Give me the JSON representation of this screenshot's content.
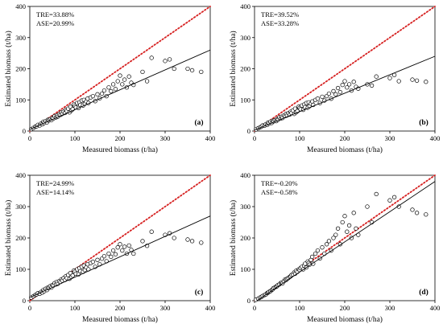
{
  "figure": {
    "xlabel_ab": "Measured biomass  (t/ha)",
    "xlabel_cd": "Measured biomass (t/ha)"
  },
  "colors": {
    "one_to_one_line": "#d62020",
    "fit_line": "#000000",
    "marker_edge": "#000000",
    "marker_fill": "#ffffff"
  },
  "chart_data": [
    {
      "type": "scatter",
      "panel_label": "(a)",
      "stats": [
        "TRE=33.88%",
        "ASE=20.99%"
      ],
      "xlabel": "Measured biomass  (t/ha)",
      "ylabel": "Estimated biomass  (t/ha)",
      "xlim": [
        0,
        400
      ],
      "ylim": [
        0,
        400
      ],
      "xticks": [
        0,
        100,
        200,
        300,
        400
      ],
      "yticks": [
        0,
        100,
        200,
        300,
        400
      ],
      "fit_line": {
        "x": [
          0,
          400
        ],
        "y": [
          5,
          260
        ]
      },
      "reference_line": {
        "x": [
          0,
          400
        ],
        "y": [
          0,
          400
        ],
        "style": "dotted"
      },
      "points": {
        "x": [
          3,
          8,
          12,
          15,
          18,
          22,
          25,
          28,
          30,
          32,
          35,
          38,
          40,
          42,
          45,
          48,
          50,
          52,
          55,
          58,
          60,
          62,
          65,
          68,
          70,
          72,
          75,
          78,
          80,
          82,
          85,
          88,
          90,
          92,
          95,
          98,
          100,
          102,
          105,
          108,
          110,
          112,
          115,
          118,
          120,
          122,
          125,
          128,
          130,
          135,
          140,
          145,
          150,
          155,
          160,
          165,
          170,
          175,
          180,
          185,
          190,
          195,
          200,
          205,
          210,
          215,
          220,
          225,
          230,
          250,
          260,
          270,
          300,
          310,
          320,
          350,
          360,
          380
        ],
        "y": [
          6,
          10,
          14,
          15,
          20,
          18,
          24,
          22,
          30,
          26,
          32,
          28,
          36,
          34,
          38,
          35,
          42,
          40,
          48,
          44,
          50,
          46,
          54,
          52,
          60,
          55,
          62,
          58,
          68,
          64,
          72,
          60,
          78,
          66,
          70,
          85,
          80,
          76,
          90,
          74,
          92,
          84,
          98,
          82,
          100,
          88,
          95,
          104,
          90,
          108,
          112,
          96,
          118,
          105,
          120,
          130,
          112,
          140,
          128,
          150,
          135,
          160,
          178,
          150,
          165,
          140,
          175,
          155,
          148,
          190,
          160,
          235,
          225,
          230,
          200,
          200,
          195,
          190
        ]
      }
    },
    {
      "type": "scatter",
      "panel_label": "(b)",
      "stats": [
        "TRE=39.52%",
        "ASE=33.28%"
      ],
      "xlabel": "Measured biomass  (t/ha)",
      "ylabel": "Estimated biomass  (t/ha)",
      "xlim": [
        0,
        400
      ],
      "ylim": [
        0,
        400
      ],
      "xticks": [
        0,
        100,
        200,
        300,
        400
      ],
      "yticks": [
        0,
        100,
        200,
        300,
        400
      ],
      "fit_line": {
        "x": [
          0,
          400
        ],
        "y": [
          3,
          240
        ]
      },
      "reference_line": {
        "x": [
          0,
          400
        ],
        "y": [
          0,
          400
        ],
        "style": "dotted"
      },
      "points": {
        "x": [
          3,
          8,
          12,
          15,
          18,
          22,
          25,
          28,
          30,
          32,
          35,
          38,
          40,
          42,
          45,
          48,
          50,
          52,
          55,
          58,
          60,
          62,
          65,
          68,
          70,
          72,
          75,
          78,
          80,
          82,
          85,
          88,
          90,
          92,
          95,
          98,
          100,
          102,
          105,
          108,
          110,
          112,
          115,
          118,
          120,
          122,
          125,
          128,
          130,
          135,
          140,
          145,
          150,
          155,
          160,
          165,
          170,
          175,
          180,
          185,
          190,
          195,
          200,
          205,
          210,
          215,
          220,
          225,
          230,
          250,
          260,
          270,
          300,
          310,
          320,
          350,
          360,
          380
        ],
        "y": [
          5,
          9,
          12,
          14,
          18,
          17,
          22,
          20,
          27,
          24,
          30,
          26,
          33,
          31,
          35,
          32,
          38,
          36,
          44,
          40,
          46,
          42,
          50,
          48,
          55,
          50,
          57,
          53,
          62,
          58,
          66,
          55,
          72,
          60,
          64,
          78,
          74,
          70,
          82,
          68,
          85,
          77,
          90,
          75,
          92,
          80,
          88,
          95,
          84,
          100,
          104,
          90,
          110,
          98,
          112,
          120,
          104,
          128,
          118,
          138,
          125,
          148,
          160,
          140,
          150,
          130,
          158,
          142,
          136,
          150,
          146,
          175,
          170,
          180,
          160,
          165,
          162,
          158
        ]
      }
    },
    {
      "type": "scatter",
      "panel_label": "(c)",
      "stats": [
        "TRE=24.99%",
        "ASE=14.14%"
      ],
      "xlabel": "Measured biomass (t/ha)",
      "ylabel": "Estimated biomass  (t/ha)",
      "xlim": [
        0,
        400
      ],
      "ylim": [
        0,
        400
      ],
      "xticks": [
        0,
        100,
        200,
        300,
        400
      ],
      "yticks": [
        0,
        100,
        200,
        300,
        400
      ],
      "fit_line": {
        "x": [
          0,
          400
        ],
        "y": [
          10,
          270
        ]
      },
      "reference_line": {
        "x": [
          0,
          400
        ],
        "y": [
          0,
          400
        ],
        "style": "dotted"
      },
      "points": {
        "x": [
          3,
          8,
          12,
          15,
          18,
          22,
          25,
          28,
          30,
          32,
          35,
          38,
          40,
          42,
          45,
          48,
          50,
          52,
          55,
          58,
          60,
          62,
          65,
          68,
          70,
          72,
          75,
          78,
          80,
          82,
          85,
          88,
          90,
          92,
          95,
          98,
          100,
          102,
          105,
          108,
          110,
          112,
          115,
          118,
          120,
          122,
          125,
          128,
          130,
          135,
          140,
          145,
          150,
          155,
          160,
          165,
          170,
          175,
          180,
          185,
          190,
          195,
          200,
          205,
          210,
          215,
          220,
          225,
          230,
          250,
          260,
          270,
          300,
          310,
          320,
          350,
          360,
          380
        ],
        "y": [
          10,
          14,
          18,
          20,
          24,
          22,
          28,
          26,
          34,
          30,
          38,
          34,
          42,
          40,
          46,
          42,
          50,
          48,
          56,
          52,
          60,
          54,
          62,
          60,
          68,
          64,
          72,
          66,
          78,
          72,
          82,
          70,
          88,
          76,
          80,
          96,
          92,
          86,
          100,
          84,
          104,
          94,
          108,
          92,
          112,
          98,
          106,
          116,
          100,
          120,
          124,
          108,
          130,
          116,
          134,
          142,
          126,
          150,
          140,
          160,
          148,
          170,
          180,
          160,
          172,
          150,
          176,
          162,
          150,
          190,
          175,
          220,
          210,
          215,
          200,
          195,
          190,
          185
        ]
      }
    },
    {
      "type": "scatter",
      "panel_label": "(d)",
      "stats": [
        "TRE=-0.20%",
        "ASE=-0.58%"
      ],
      "xlabel": "Measured biomass (t/ha)",
      "ylabel": "Estimated biomass  (t/ha)",
      "xlim": [
        0,
        400
      ],
      "ylim": [
        0,
        400
      ],
      "xticks": [
        0,
        100,
        200,
        300,
        400
      ],
      "yticks": [
        0,
        100,
        200,
        300,
        400
      ],
      "fit_line": {
        "x": [
          0,
          400
        ],
        "y": [
          -5,
          380
        ]
      },
      "reference_line": {
        "x": [
          0,
          400
        ],
        "y": [
          0,
          400
        ],
        "style": "dotted"
      },
      "points": {
        "x": [
          3,
          8,
          12,
          15,
          18,
          22,
          25,
          28,
          30,
          32,
          35,
          38,
          40,
          42,
          45,
          48,
          50,
          52,
          55,
          58,
          60,
          62,
          65,
          68,
          70,
          72,
          75,
          78,
          80,
          82,
          85,
          88,
          90,
          92,
          95,
          98,
          100,
          102,
          105,
          108,
          110,
          112,
          115,
          118,
          120,
          122,
          125,
          128,
          130,
          135,
          140,
          145,
          150,
          155,
          160,
          165,
          170,
          175,
          180,
          185,
          190,
          195,
          200,
          205,
          210,
          215,
          220,
          225,
          230,
          250,
          260,
          270,
          300,
          310,
          320,
          350,
          360,
          380
        ],
        "y": [
          3,
          6,
          10,
          12,
          15,
          18,
          20,
          24,
          26,
          28,
          30,
          34,
          36,
          40,
          42,
          45,
          46,
          50,
          52,
          56,
          58,
          55,
          62,
          68,
          66,
          70,
          72,
          76,
          78,
          82,
          84,
          90,
          86,
          95,
          92,
          100,
          98,
          104,
          108,
          100,
          112,
          118,
          106,
          125,
          120,
          115,
          130,
          140,
          118,
          150,
          160,
          135,
          170,
          150,
          180,
          190,
          160,
          200,
          210,
          230,
          180,
          250,
          270,
          220,
          240,
          200,
          280,
          230,
          210,
          300,
          250,
          340,
          320,
          330,
          300,
          290,
          280,
          275
        ]
      }
    }
  ]
}
